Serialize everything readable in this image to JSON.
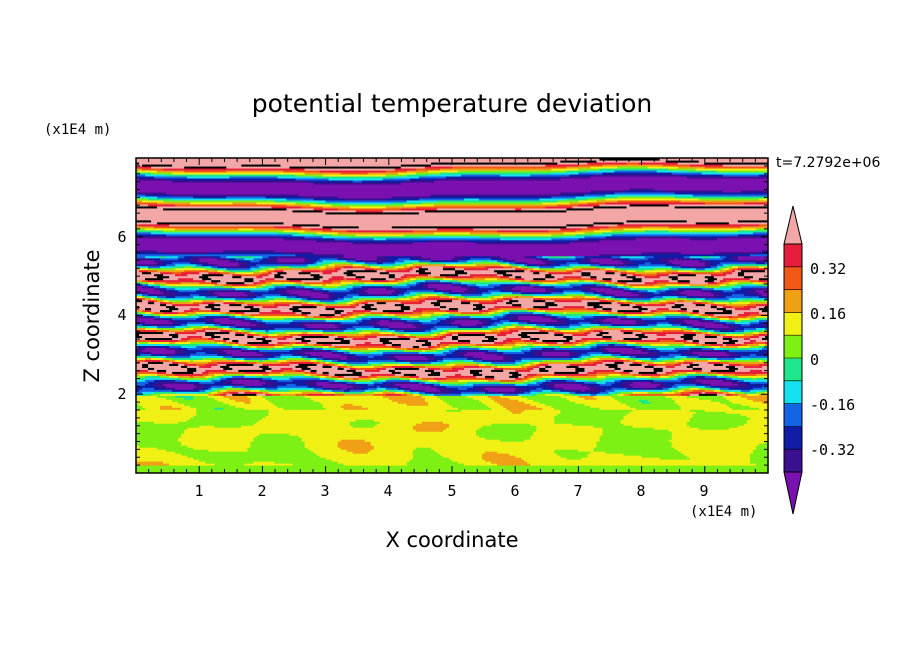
{
  "chart_data": {
    "type": "heatmap",
    "title": "potential temperature deviation",
    "xlabel": "X coordinate",
    "ylabel": "Z coordinate",
    "x_unit": "(x1E4 m)",
    "y_unit": "(x1E4 m)",
    "time_label": "t=7.2792e+06",
    "xlim": [
      0,
      10
    ],
    "ylim": [
      0,
      8
    ],
    "x_ticks": [
      "1",
      "2",
      "3",
      "4",
      "5",
      "6",
      "7",
      "8",
      "9"
    ],
    "y_ticks": [
      "2",
      "4",
      "6"
    ],
    "colorbar": {
      "levels": [
        -0.48,
        -0.4,
        -0.32,
        -0.24,
        -0.16,
        -0.08,
        0,
        0.08,
        0.16,
        0.24,
        0.32,
        0.4,
        0.48
      ],
      "labels": [
        "0.32",
        "0.16",
        "0",
        "-0.16",
        "-0.32"
      ],
      "colors": [
        "#7a10b0",
        "#3c0f8f",
        "#101ca6",
        "#1464e6",
        "#14e0f0",
        "#1ee68a",
        "#7df014",
        "#f0f014",
        "#f0a014",
        "#f05a14",
        "#e61e3c",
        "#f2a6a6"
      ],
      "extend": "both"
    },
    "z_layers": [
      {
        "z_range": [
          0,
          2.0
        ],
        "description": "boundary layer, values near 0 (green / yellow-green cells)"
      },
      {
        "z_range": [
          2.0,
          5.5
        ],
        "description": "thin alternating layers spanning full color range"
      },
      {
        "z_range": [
          5.5,
          8.0
        ],
        "description": "broad alternating bands of pink (>0.4) and purple (<-0.4)"
      }
    ]
  }
}
